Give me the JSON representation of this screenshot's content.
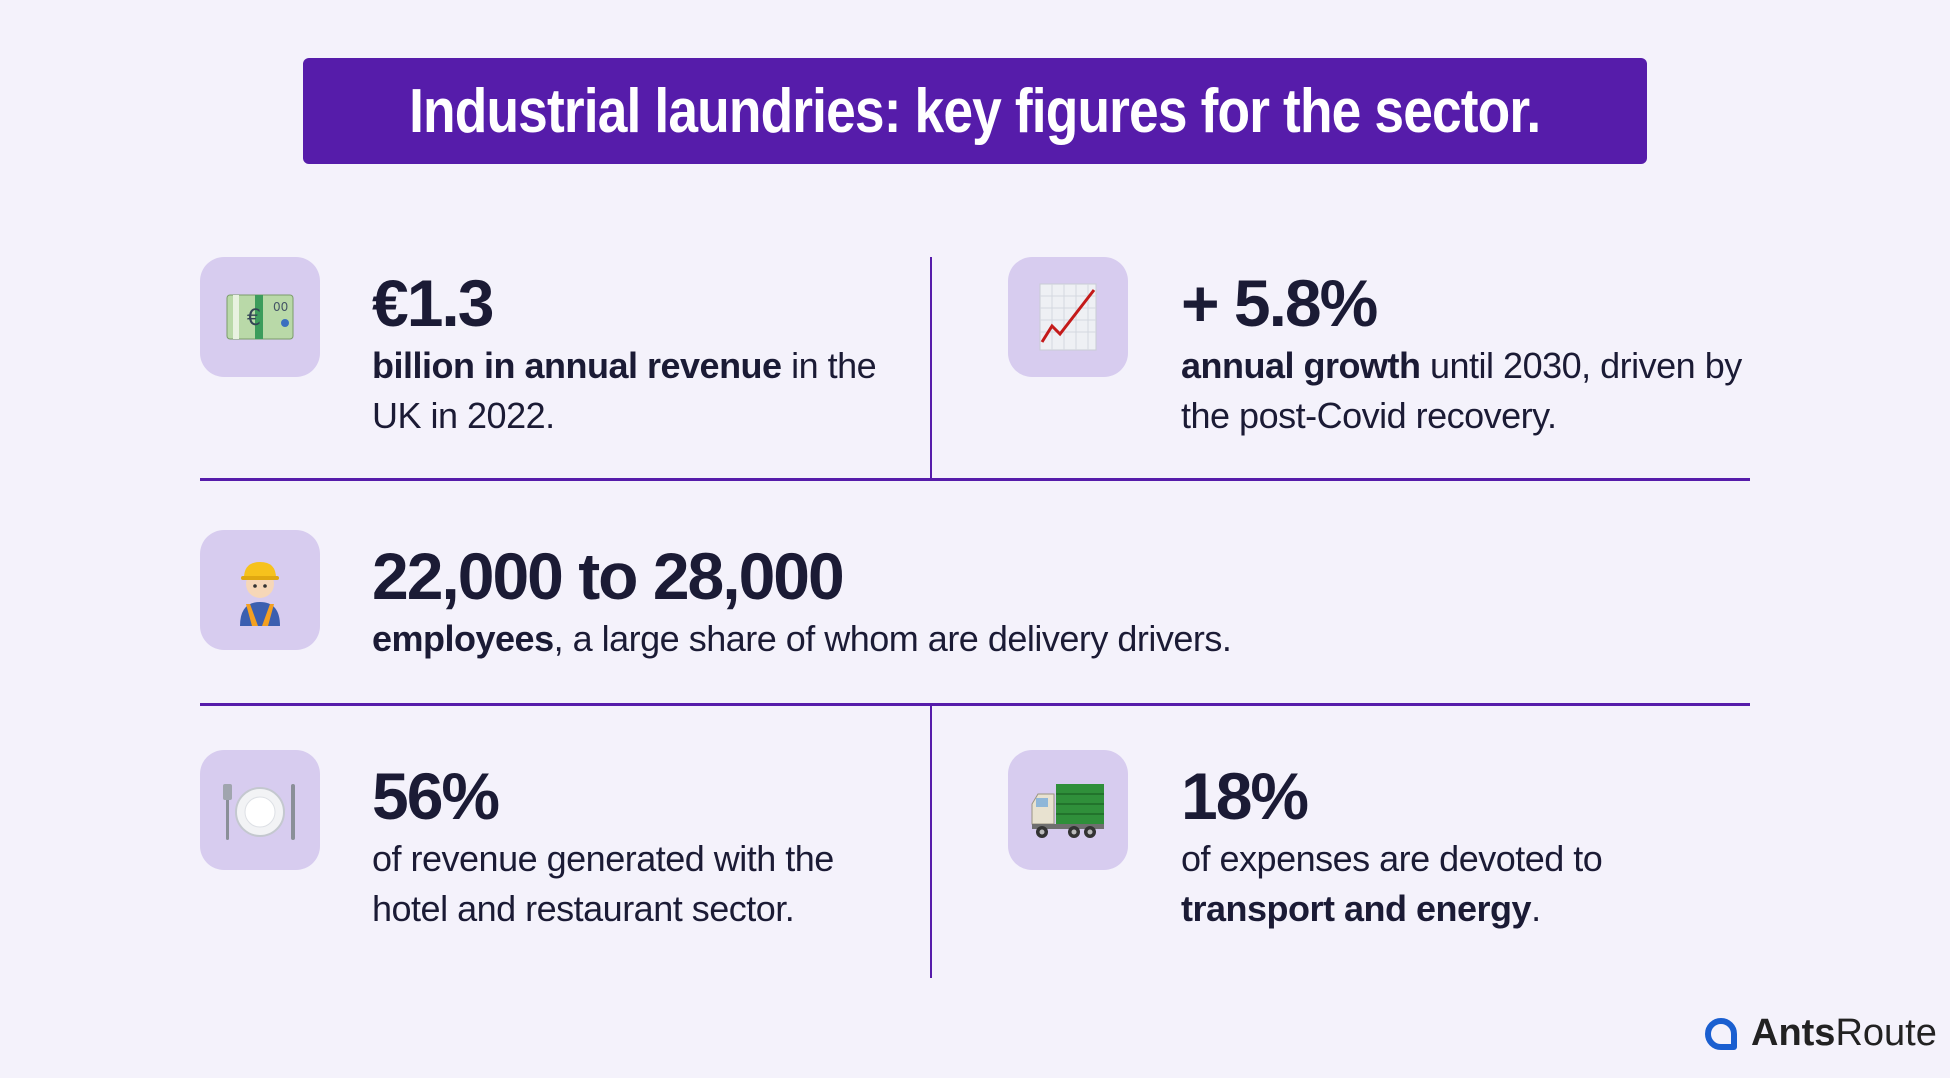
{
  "title": "Industrial laundries: key figures for the sector.",
  "colors": {
    "accent": "#561caa",
    "icon_bg": "#d7ccef",
    "background": "#f4f2fb",
    "text": "#1b1b35"
  },
  "stats": [
    {
      "icon": "euro-banknote-icon",
      "value": "€1.3",
      "bold": "billion in annual revenue",
      "rest": " in the UK in 2022."
    },
    {
      "icon": "chart-increasing-icon",
      "value": "+ 5.8%",
      "bold": "annual growth",
      "rest": " until 2030, driven by the post-Covid recovery."
    },
    {
      "icon": "construction-worker-icon",
      "value": "22,000 to 28,000",
      "bold": "employees",
      "rest": ", a large share of whom are delivery drivers."
    },
    {
      "icon": "fork-knife-plate-icon",
      "value": "56%",
      "pre": "of revenue generated with the hotel and restaurant sector."
    },
    {
      "icon": "delivery-truck-icon",
      "value": "18%",
      "pre": "of expenses are devoted to ",
      "bold": "transport and energy",
      "rest": "."
    }
  ],
  "logo": {
    "bold": "Ants",
    "rest": "Route"
  }
}
